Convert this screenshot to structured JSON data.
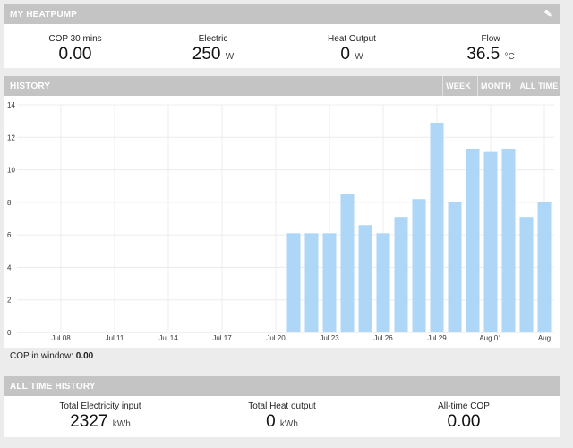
{
  "heatpump": {
    "title": "MY HEATPUMP",
    "edit_icon": "pencil-icon",
    "stats": [
      {
        "label": "COP 30 mins",
        "value": "0.00",
        "unit": ""
      },
      {
        "label": "Electric",
        "value": "250",
        "unit": "W"
      },
      {
        "label": "Heat Output",
        "value": "0",
        "unit": "W"
      },
      {
        "label": "Flow",
        "value": "36.5",
        "unit": "°C"
      }
    ]
  },
  "history": {
    "title": "HISTORY",
    "buttons": [
      "WEEK",
      "MONTH",
      "ALL TIME"
    ],
    "cop_window_label": "COP in window:",
    "cop_window_value": "0.00"
  },
  "all_time": {
    "title": "ALL TIME HISTORY",
    "stats": [
      {
        "label": "Total Electricity input",
        "value": "2327",
        "unit": "kWh"
      },
      {
        "label": "Total Heat output",
        "value": "0",
        "unit": "kWh"
      },
      {
        "label": "All-time COP",
        "value": "0.00",
        "unit": ""
      }
    ]
  },
  "colors": {
    "header_bg": "#c4c4c4",
    "bar": "#aed6f7"
  },
  "chart_data": {
    "type": "bar",
    "ylim": [
      0,
      14
    ],
    "yticks": [
      0,
      2,
      4,
      6,
      8,
      10,
      12,
      14
    ],
    "xticks": [
      "Jul 08",
      "Jul 11",
      "Jul 14",
      "Jul 17",
      "Jul 20",
      "Jul 23",
      "Jul 26",
      "Jul 29",
      "Aug 01",
      "Aug"
    ],
    "grid": true,
    "categories": [
      "Jul 21",
      "Jul 22",
      "Jul 23",
      "Jul 24",
      "Jul 25",
      "Jul 26",
      "Jul 27",
      "Jul 28",
      "Jul 29",
      "Jul 30",
      "Jul 31",
      "Aug 01",
      "Aug 02",
      "Aug 03",
      "Aug 04"
    ],
    "values": [
      6.1,
      6.1,
      6.1,
      8.5,
      6.6,
      6.1,
      7.1,
      8.2,
      12.9,
      8.0,
      11.3,
      11.1,
      11.3,
      7.1,
      8.0
    ]
  }
}
